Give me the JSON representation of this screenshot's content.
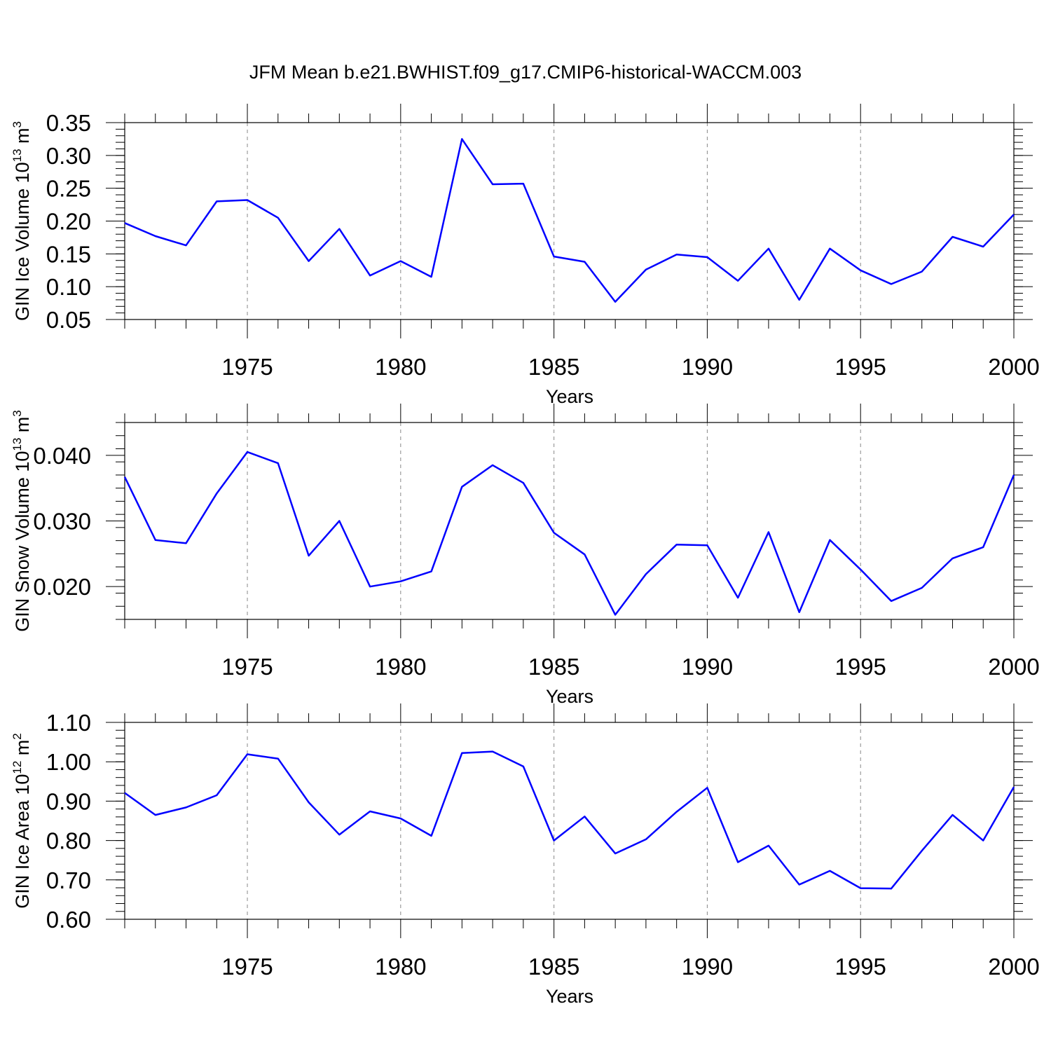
{
  "title": "JFM Mean b.e21.BWHIST.f09_g17.CMIP6-historical-WACCM.003",
  "line_color": "#0000ff",
  "chart_data": [
    {
      "type": "line",
      "name": "ice-volume",
      "ylabel": {
        "prefix": "GIN Ice Volume 10",
        "exp": "13",
        "unit": " m",
        "unit_exp": "3"
      },
      "xlabel": "Years",
      "xlim": [
        1971,
        2000
      ],
      "ylim": [
        0.05,
        0.35
      ],
      "yticks": [
        0.05,
        0.1,
        0.15,
        0.2,
        0.25,
        0.3,
        0.35
      ],
      "ytick_labels": [
        "0.05",
        "0.10",
        "0.15",
        "0.20",
        "0.25",
        "0.30",
        "0.35"
      ],
      "yminor_step": 0.01,
      "xticks": [
        1975,
        1980,
        1985,
        1990,
        1995,
        2000
      ],
      "xtick_labels": [
        "1975",
        "1980",
        "1985",
        "1990",
        "1995",
        "2000"
      ],
      "x": [
        1971,
        1972,
        1973,
        1974,
        1975,
        1976,
        1977,
        1978,
        1979,
        1980,
        1981,
        1982,
        1983,
        1984,
        1985,
        1986,
        1987,
        1988,
        1989,
        1990,
        1991,
        1992,
        1993,
        1994,
        1995,
        1996,
        1997,
        1998,
        1999,
        2000
      ],
      "values": [
        0.197,
        0.177,
        0.163,
        0.23,
        0.232,
        0.205,
        0.139,
        0.188,
        0.117,
        0.139,
        0.115,
        0.325,
        0.256,
        0.257,
        0.146,
        0.138,
        0.077,
        0.126,
        0.149,
        0.145,
        0.109,
        0.158,
        0.08,
        0.158,
        0.125,
        0.104,
        0.123,
        0.176,
        0.161,
        0.21
      ]
    },
    {
      "type": "line",
      "name": "snow-volume",
      "ylabel": {
        "prefix": "GIN Snow Volume 10",
        "exp": "13",
        "unit": " m",
        "unit_exp": "3"
      },
      "xlabel": "Years",
      "xlim": [
        1971,
        2000
      ],
      "ylim": [
        0.015,
        0.045
      ],
      "yticks": [
        0.02,
        0.03,
        0.04
      ],
      "ytick_labels": [
        "0.020",
        "0.030",
        "0.040"
      ],
      "yminor_step": 0.002,
      "xticks": [
        1975,
        1980,
        1985,
        1990,
        1995,
        2000
      ],
      "xtick_labels": [
        "1975",
        "1980",
        "1985",
        "1990",
        "1995",
        "2000"
      ],
      "x": [
        1971,
        1972,
        1973,
        1974,
        1975,
        1976,
        1977,
        1978,
        1979,
        1980,
        1981,
        1982,
        1983,
        1984,
        1985,
        1986,
        1987,
        1988,
        1989,
        1990,
        1991,
        1992,
        1993,
        1994,
        1995,
        1996,
        1997,
        1998,
        1999,
        2000
      ],
      "values": [
        0.0367,
        0.0271,
        0.0266,
        0.0342,
        0.0405,
        0.0388,
        0.0247,
        0.03,
        0.02,
        0.0208,
        0.0223,
        0.0352,
        0.0385,
        0.0358,
        0.0282,
        0.0249,
        0.0157,
        0.0219,
        0.0264,
        0.0263,
        0.0183,
        0.0283,
        0.0161,
        0.0271,
        0.0226,
        0.0178,
        0.0198,
        0.0243,
        0.026,
        0.037
      ]
    },
    {
      "type": "line",
      "name": "ice-area",
      "ylabel": {
        "prefix": "GIN Ice Area 10",
        "exp": "12",
        "unit": " m",
        "unit_exp": "2"
      },
      "xlabel": "Years",
      "xlim": [
        1971,
        2000
      ],
      "ylim": [
        0.6,
        1.1
      ],
      "yticks": [
        0.6,
        0.7,
        0.8,
        0.9,
        1.0,
        1.1
      ],
      "ytick_labels": [
        "0.60",
        "0.70",
        "0.80",
        "0.90",
        "1.00",
        "1.10"
      ],
      "yminor_step": 0.02,
      "xticks": [
        1975,
        1980,
        1985,
        1990,
        1995,
        2000
      ],
      "xtick_labels": [
        "1975",
        "1980",
        "1985",
        "1990",
        "1995",
        "2000"
      ],
      "x": [
        1971,
        1972,
        1973,
        1974,
        1975,
        1976,
        1977,
        1978,
        1979,
        1980,
        1981,
        1982,
        1983,
        1984,
        1985,
        1986,
        1987,
        1988,
        1989,
        1990,
        1991,
        1992,
        1993,
        1994,
        1995,
        1996,
        1997,
        1998,
        1999,
        2000
      ],
      "values": [
        0.921,
        0.865,
        0.884,
        0.915,
        1.019,
        1.008,
        0.897,
        0.815,
        0.874,
        0.856,
        0.812,
        1.022,
        1.026,
        0.988,
        0.8,
        0.861,
        0.767,
        0.803,
        0.873,
        0.934,
        0.745,
        0.787,
        0.688,
        0.723,
        0.679,
        0.678,
        0.774,
        0.865,
        0.8,
        0.936
      ]
    }
  ]
}
